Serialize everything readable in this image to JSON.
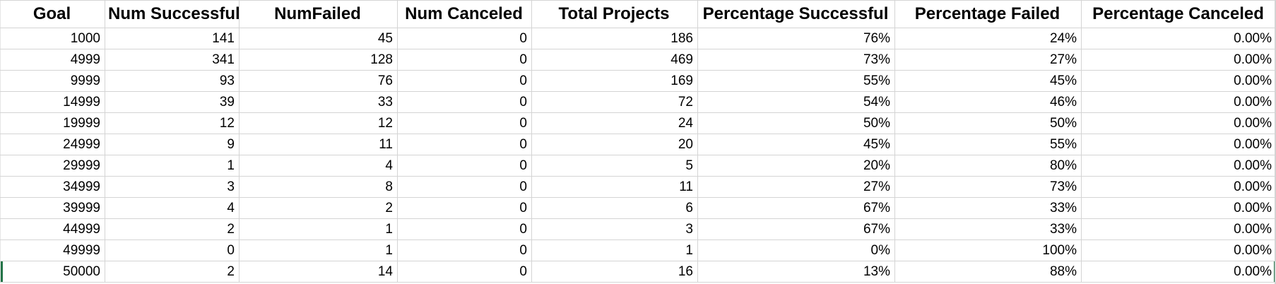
{
  "sheet": {
    "headers": [
      "Goal",
      "Num Successful",
      "NumFailed",
      "Num Canceled",
      "Total Projects",
      "Percentage  Successful",
      "Percentage Failed",
      "Percentage Canceled"
    ],
    "rows": [
      [
        "1000",
        "141",
        "45",
        "0",
        "186",
        "76%",
        "24%",
        "0.00%"
      ],
      [
        "4999",
        "341",
        "128",
        "0",
        "469",
        "73%",
        "27%",
        "0.00%"
      ],
      [
        "9999",
        "93",
        "76",
        "0",
        "169",
        "55%",
        "45%",
        "0.00%"
      ],
      [
        "14999",
        "39",
        "33",
        "0",
        "72",
        "54%",
        "46%",
        "0.00%"
      ],
      [
        "19999",
        "12",
        "12",
        "0",
        "24",
        "50%",
        "50%",
        "0.00%"
      ],
      [
        "24999",
        "9",
        "11",
        "0",
        "20",
        "45%",
        "55%",
        "0.00%"
      ],
      [
        "29999",
        "1",
        "4",
        "0",
        "5",
        "20%",
        "80%",
        "0.00%"
      ],
      [
        "34999",
        "3",
        "8",
        "0",
        "11",
        "27%",
        "73%",
        "0.00%"
      ],
      [
        "39999",
        "4",
        "2",
        "0",
        "6",
        "67%",
        "33%",
        "0.00%"
      ],
      [
        "44999",
        "2",
        "1",
        "0",
        "3",
        "67%",
        "33%",
        "0.00%"
      ],
      [
        "49999",
        "0",
        "1",
        "0",
        "1",
        "0%",
        "100%",
        "0.00%"
      ],
      [
        "50000",
        "2",
        "14",
        "0",
        "16",
        "13%",
        "88%",
        "0.00%"
      ]
    ],
    "selection_color": "#217346",
    "gridline_color": "#d4d4d4"
  }
}
